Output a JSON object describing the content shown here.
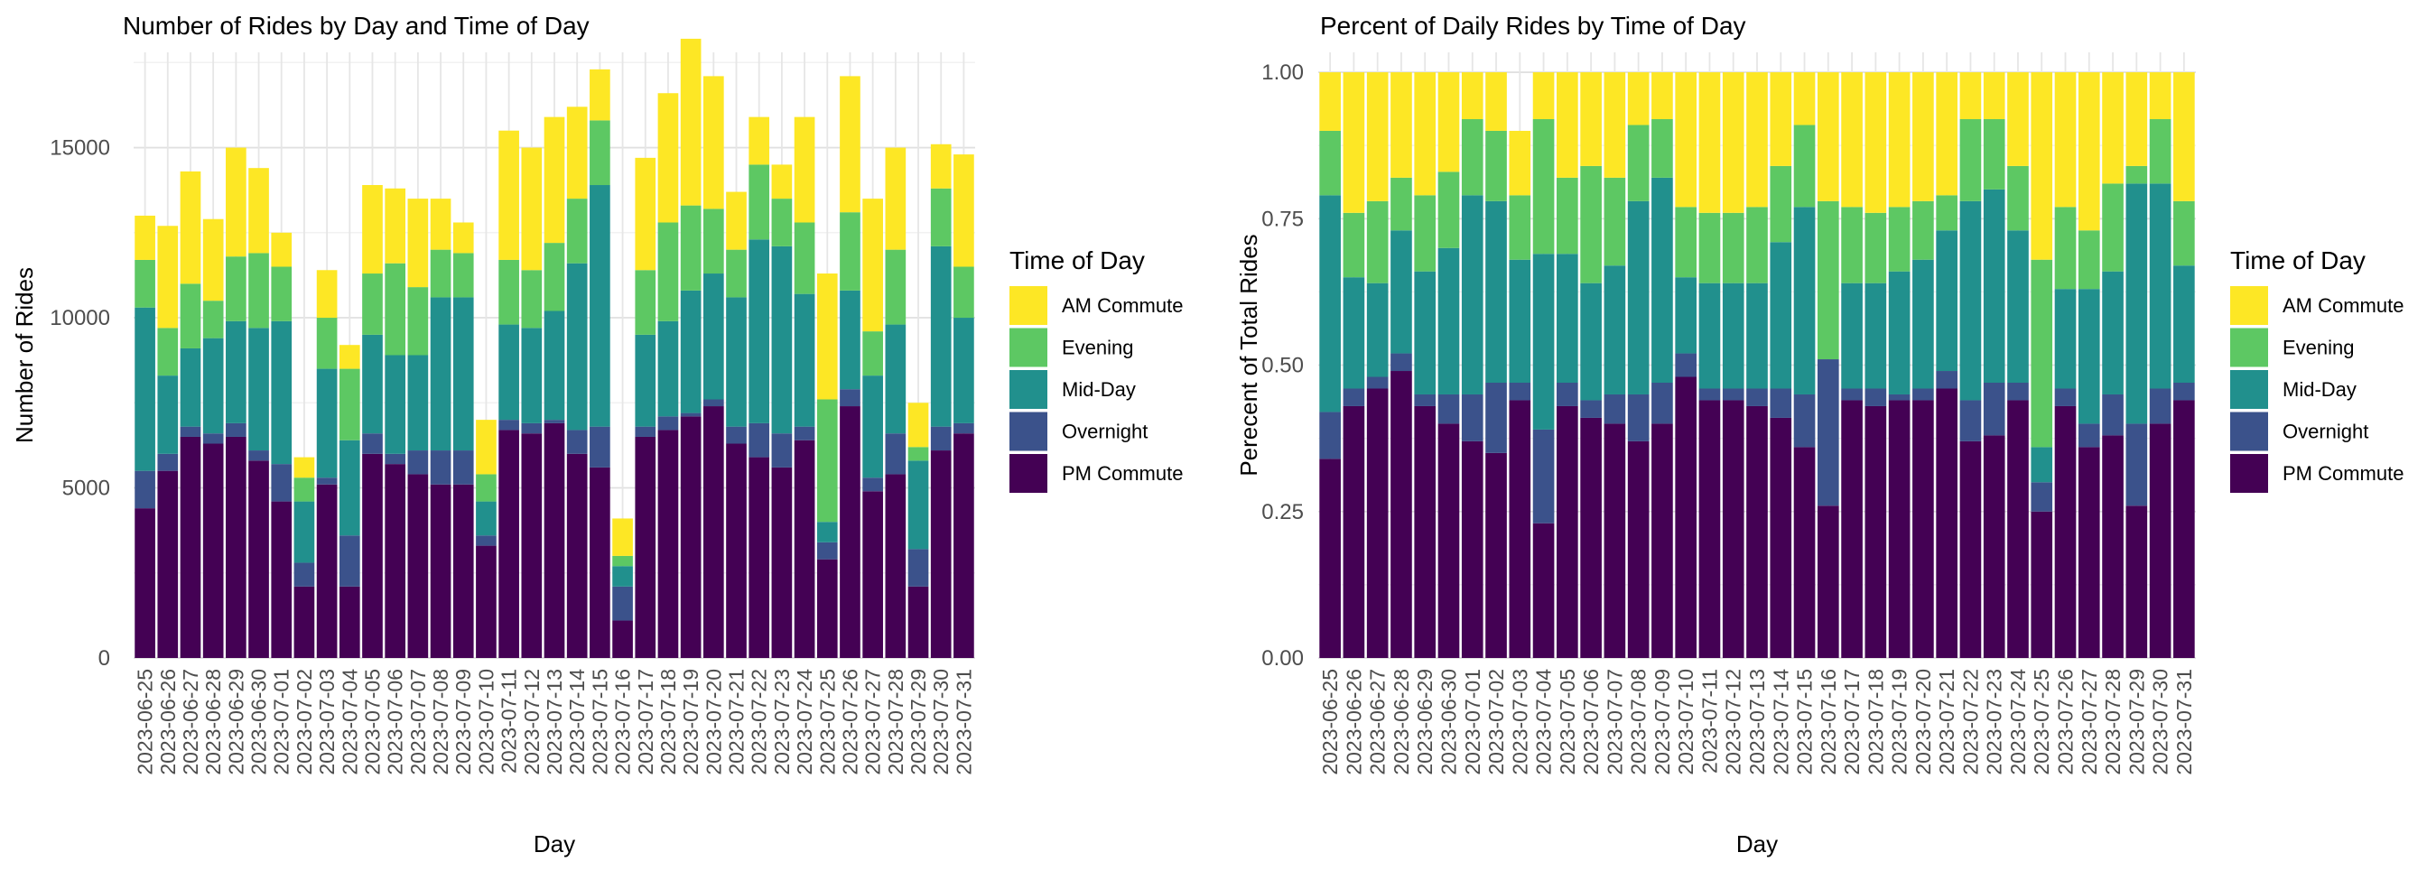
{
  "chart_data": [
    {
      "type": "stacked-bar",
      "title": "Number of Rides by Day and Time of Day",
      "xlabel": "Day",
      "ylabel": "Number of Rides",
      "ylim": [
        0,
        17800
      ],
      "yticks": [
        0,
        5000,
        10000,
        15000
      ],
      "ytick_labels": [
        "0",
        "5000",
        "10000",
        "15000"
      ],
      "grid": true,
      "legend_title": "Time of Day",
      "legend_position": "right",
      "categories": [
        "2023-06-25",
        "2023-06-26",
        "2023-06-27",
        "2023-06-28",
        "2023-06-29",
        "2023-06-30",
        "2023-07-01",
        "2023-07-02",
        "2023-07-03",
        "2023-07-04",
        "2023-07-05",
        "2023-07-06",
        "2023-07-07",
        "2023-07-08",
        "2023-07-09",
        "2023-07-10",
        "2023-07-11",
        "2023-07-12",
        "2023-07-13",
        "2023-07-14",
        "2023-07-15",
        "2023-07-16",
        "2023-07-17",
        "2023-07-18",
        "2023-07-19",
        "2023-07-20",
        "2023-07-21",
        "2023-07-22",
        "2023-07-23",
        "2023-07-24",
        "2023-07-25",
        "2023-07-26",
        "2023-07-27",
        "2023-07-28",
        "2023-07-29",
        "2023-07-30",
        "2023-07-31"
      ],
      "series": [
        {
          "name": "PM Commute",
          "color": "#440154",
          "values": [
            4400,
            5500,
            6500,
            6300,
            6500,
            5800,
            4600,
            2100,
            5100,
            2100,
            6000,
            5700,
            5400,
            5100,
            5100,
            3300,
            6700,
            6600,
            6900,
            6000,
            5600,
            1100,
            6500,
            6700,
            7100,
            7400,
            6300,
            5900,
            5600,
            6400,
            2900,
            7400,
            4900,
            5400,
            2100,
            6100,
            6600
          ]
        },
        {
          "name": "Overnight",
          "color": "#3b528b",
          "values": [
            1100,
            500,
            300,
            300,
            400,
            300,
            1100,
            700,
            200,
            1500,
            600,
            300,
            700,
            1000,
            1000,
            300,
            300,
            300,
            100,
            700,
            1200,
            1000,
            300,
            400,
            100,
            200,
            500,
            1000,
            1000,
            400,
            500,
            500,
            400,
            1200,
            1100,
            700,
            300
          ]
        },
        {
          "name": "Mid-Day",
          "color": "#21908d",
          "values": [
            4800,
            2300,
            2300,
            2800,
            3000,
            3600,
            4200,
            1800,
            3200,
            2800,
            2900,
            2900,
            2800,
            4500,
            4500,
            1000,
            2800,
            2800,
            3200,
            4900,
            7100,
            600,
            2700,
            2800,
            3600,
            3700,
            3800,
            5400,
            5500,
            3900,
            600,
            2900,
            3000,
            3200,
            2600,
            5300,
            3100
          ]
        },
        {
          "name": "Evening",
          "color": "#5dc863",
          "values": [
            1400,
            1400,
            1900,
            1100,
            1900,
            2200,
            1600,
            700,
            1500,
            2100,
            1800,
            2700,
            2000,
            1400,
            1300,
            800,
            1900,
            1700,
            2000,
            1900,
            1900,
            300,
            1900,
            2900,
            2500,
            1900,
            1400,
            2200,
            1400,
            2100,
            3600,
            2300,
            1300,
            2200,
            400,
            1700,
            1500
          ]
        },
        {
          "name": "AM Commute",
          "color": "#fde725",
          "values": [
            1300,
            3000,
            3300,
            2400,
            3200,
            2500,
            1000,
            600,
            1400,
            700,
            2600,
            2200,
            2600,
            1500,
            900,
            1600,
            3800,
            3600,
            3700,
            2700,
            1500,
            1100,
            3300,
            3800,
            4900,
            3900,
            1700,
            1400,
            1000,
            3100,
            3700,
            4000,
            3900,
            3000,
            1300,
            1300,
            3300
          ]
        }
      ]
    },
    {
      "type": "stacked-bar",
      "title": "Percent of Daily Rides by Time of Day",
      "xlabel": "Day",
      "ylabel": "Perecent of Total Rides",
      "ylim": [
        0,
        1.034
      ],
      "yticks": [
        0,
        0.25,
        0.5,
        0.75,
        1
      ],
      "ytick_labels": [
        "0.00",
        "0.25",
        "0.50",
        "0.75",
        "1.00"
      ],
      "grid": true,
      "legend_title": "Time of Day",
      "legend_position": "right",
      "categories": [
        "2023-06-25",
        "2023-06-26",
        "2023-06-27",
        "2023-06-28",
        "2023-06-29",
        "2023-06-30",
        "2023-07-01",
        "2023-07-02",
        "2023-07-03",
        "2023-07-04",
        "2023-07-05",
        "2023-07-06",
        "2023-07-07",
        "2023-07-08",
        "2023-07-09",
        "2023-07-10",
        "2023-07-11",
        "2023-07-12",
        "2023-07-13",
        "2023-07-14",
        "2023-07-15",
        "2023-07-16",
        "2023-07-17",
        "2023-07-18",
        "2023-07-19",
        "2023-07-20",
        "2023-07-21",
        "2023-07-22",
        "2023-07-23",
        "2023-07-24",
        "2023-07-25",
        "2023-07-26",
        "2023-07-27",
        "2023-07-28",
        "2023-07-29",
        "2023-07-30",
        "2023-07-31"
      ],
      "series": [
        {
          "name": "PM Commute",
          "color": "#440154",
          "values": [
            0.34,
            0.43,
            0.46,
            0.49,
            0.43,
            0.4,
            0.37,
            0.35,
            0.44,
            0.23,
            0.43,
            0.41,
            0.4,
            0.37,
            0.4,
            0.48,
            0.44,
            0.44,
            0.43,
            0.41,
            0.36,
            0.26,
            0.44,
            0.43,
            0.44,
            0.44,
            0.46,
            0.37,
            0.38,
            0.44,
            0.25,
            0.43,
            0.36,
            0.38,
            0.26,
            0.4,
            0.44
          ]
        },
        {
          "name": "Overnight",
          "color": "#3b528b",
          "values": [
            0.08,
            0.03,
            0.02,
            0.03,
            0.02,
            0.05,
            0.08,
            0.12,
            0.03,
            0.16,
            0.04,
            0.03,
            0.05,
            0.08,
            0.07,
            0.04,
            0.02,
            0.02,
            0.03,
            0.05,
            0.09,
            0.25,
            0.02,
            0.03,
            0.01,
            0.02,
            0.03,
            0.07,
            0.09,
            0.03,
            0.05,
            0.03,
            0.04,
            0.07,
            0.14,
            0.06,
            0.03
          ]
        },
        {
          "name": "Mid-Day",
          "color": "#21908d",
          "values": [
            0.37,
            0.19,
            0.16,
            0.21,
            0.21,
            0.25,
            0.34,
            0.31,
            0.21,
            0.3,
            0.22,
            0.2,
            0.22,
            0.33,
            0.35,
            0.13,
            0.18,
            0.18,
            0.18,
            0.25,
            0.32,
            0.0,
            0.18,
            0.18,
            0.21,
            0.22,
            0.24,
            0.34,
            0.33,
            0.26,
            0.06,
            0.17,
            0.23,
            0.21,
            0.41,
            0.35,
            0.2
          ]
        },
        {
          "name": "Evening",
          "color": "#5dc863",
          "values": [
            0.11,
            0.11,
            0.14,
            0.09,
            0.13,
            0.13,
            0.13,
            0.12,
            0.11,
            0.23,
            0.13,
            0.2,
            0.15,
            0.13,
            0.1,
            0.12,
            0.12,
            0.12,
            0.13,
            0.13,
            0.14,
            0.27,
            0.13,
            0.12,
            0.11,
            0.1,
            0.06,
            0.14,
            0.12,
            0.11,
            0.32,
            0.14,
            0.1,
            0.15,
            0.03,
            0.11,
            0.11
          ]
        },
        {
          "name": "AM Commute",
          "color": "#fde725",
          "values": [
            0.1,
            0.24,
            0.22,
            0.18,
            0.21,
            0.17,
            0.08,
            0.1,
            0.11,
            0.08,
            0.18,
            0.16,
            0.18,
            0.09,
            0.08,
            0.23,
            0.24,
            0.24,
            0.23,
            0.16,
            0.09,
            0.22,
            0.23,
            0.24,
            0.23,
            0.22,
            0.21,
            0.08,
            0.08,
            0.16,
            0.32,
            0.23,
            0.27,
            0.19,
            0.16,
            0.08,
            0.22
          ]
        }
      ]
    }
  ],
  "legend_order": [
    "AM Commute",
    "Evening",
    "Mid-Day",
    "Overnight",
    "PM Commute"
  ]
}
